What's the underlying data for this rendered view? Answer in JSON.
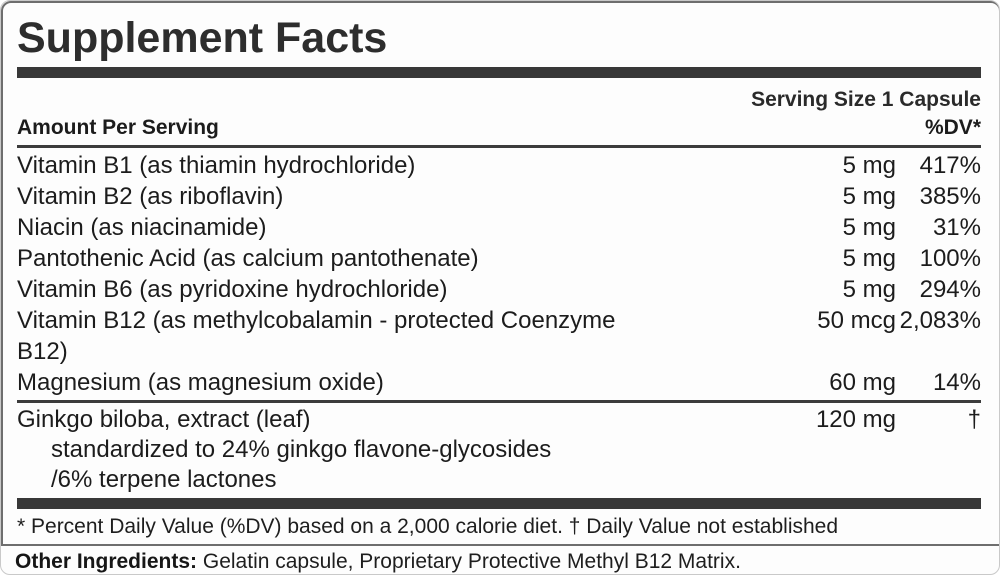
{
  "label": {
    "title": "Supplement Facts",
    "serving_size": "Serving Size 1 Capsule",
    "column_headers": {
      "amount": "Amount Per Serving",
      "dv": "%DV*"
    },
    "rows": [
      {
        "name": "Vitamin B1 (as thiamin hydrochloride)",
        "amount": "5 mg",
        "dv": "417%"
      },
      {
        "name": "Vitamin B2 (as riboflavin)",
        "amount": "5 mg",
        "dv": "385%"
      },
      {
        "name": "Niacin (as niacinamide)",
        "amount": "5 mg",
        "dv": "31%"
      },
      {
        "name": "Pantothenic Acid (as calcium pantothenate)",
        "amount": "5 mg",
        "dv": "100%"
      },
      {
        "name": "Vitamin B6 (as pyridoxine hydrochloride)",
        "amount": "5 mg",
        "dv": "294%"
      },
      {
        "name": "Vitamin B12 (as methylcobalamin - protected Coenzyme B12)",
        "amount": "50 mcg",
        "dv": "2,083%"
      },
      {
        "name": "Magnesium (as magnesium oxide)",
        "amount": "60 mg",
        "dv": "14%"
      }
    ],
    "botanical": {
      "name": "Ginkgo biloba, extract (leaf)",
      "amount": "120 mg",
      "dv": "†",
      "details": [
        "standardized to 24% ginkgo flavone-glycosides",
        "/6% terpene lactones"
      ]
    },
    "footnote": "* Percent Daily Value (%DV) based on a 2,000 calorie diet. † Daily Value not established",
    "other_ingredients": {
      "label": "Other Ingredients:",
      "text": "Gelatin capsule, Proprietary Protective Methyl B12 Matrix."
    },
    "colors": {
      "text": "#1c1c1c",
      "bar": "#383838",
      "border": "#6e6e6e"
    }
  }
}
